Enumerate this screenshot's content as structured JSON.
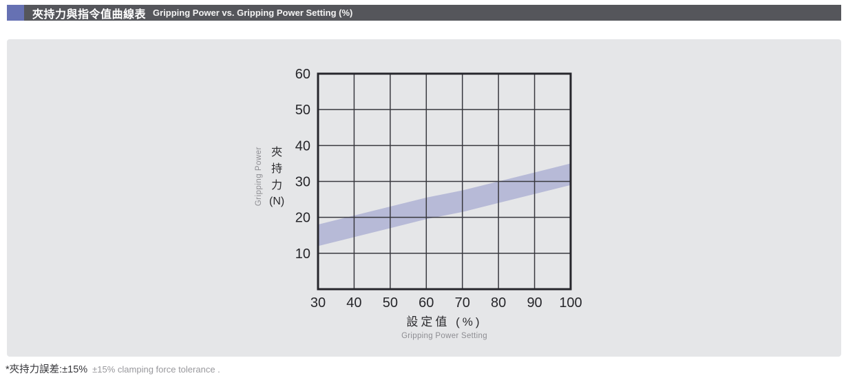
{
  "header": {
    "title_zh": "夾持力與指令值曲線表",
    "title_en": "Gripping Power vs. Gripping Power Setting (%)",
    "accent_color": "#6671b3",
    "bar_color": "#55565b"
  },
  "chart_data": {
    "type": "area",
    "description": "tolerance band of gripping power vs setting",
    "x": [
      30,
      40,
      50,
      60,
      70,
      80,
      90,
      100
    ],
    "series": [
      {
        "name": "upper",
        "values": [
          18,
          20.5,
          23,
          25.5,
          27.5,
          30,
          32.5,
          35
        ]
      },
      {
        "name": "lower",
        "values": [
          12,
          14.5,
          17,
          19.5,
          21.5,
          24,
          26.5,
          29
        ]
      }
    ],
    "xlabel_zh": "設定值 (%)",
    "xlabel_en": "Gripping Power Setting",
    "ylabel_zh": "夾持力",
    "ylabel_unit": "(N)",
    "ylabel_en": "Gripping Power",
    "xlim": [
      30,
      100
    ],
    "ylim": [
      0,
      60
    ],
    "xticks": [
      30,
      40,
      50,
      60,
      70,
      80,
      90,
      100
    ],
    "yticks": [
      10,
      20,
      30,
      40,
      50,
      60
    ],
    "grid": true,
    "legend": "none",
    "band_color": "#b7bad7",
    "plot_bg": "#e5e6e8",
    "grid_color": "#38383e",
    "border_color": "#26262c",
    "tick_color": "#26262a"
  },
  "footnote": {
    "zh": "*夾持力誤差:±15%",
    "en": "±15% clamping force tolerance ."
  }
}
